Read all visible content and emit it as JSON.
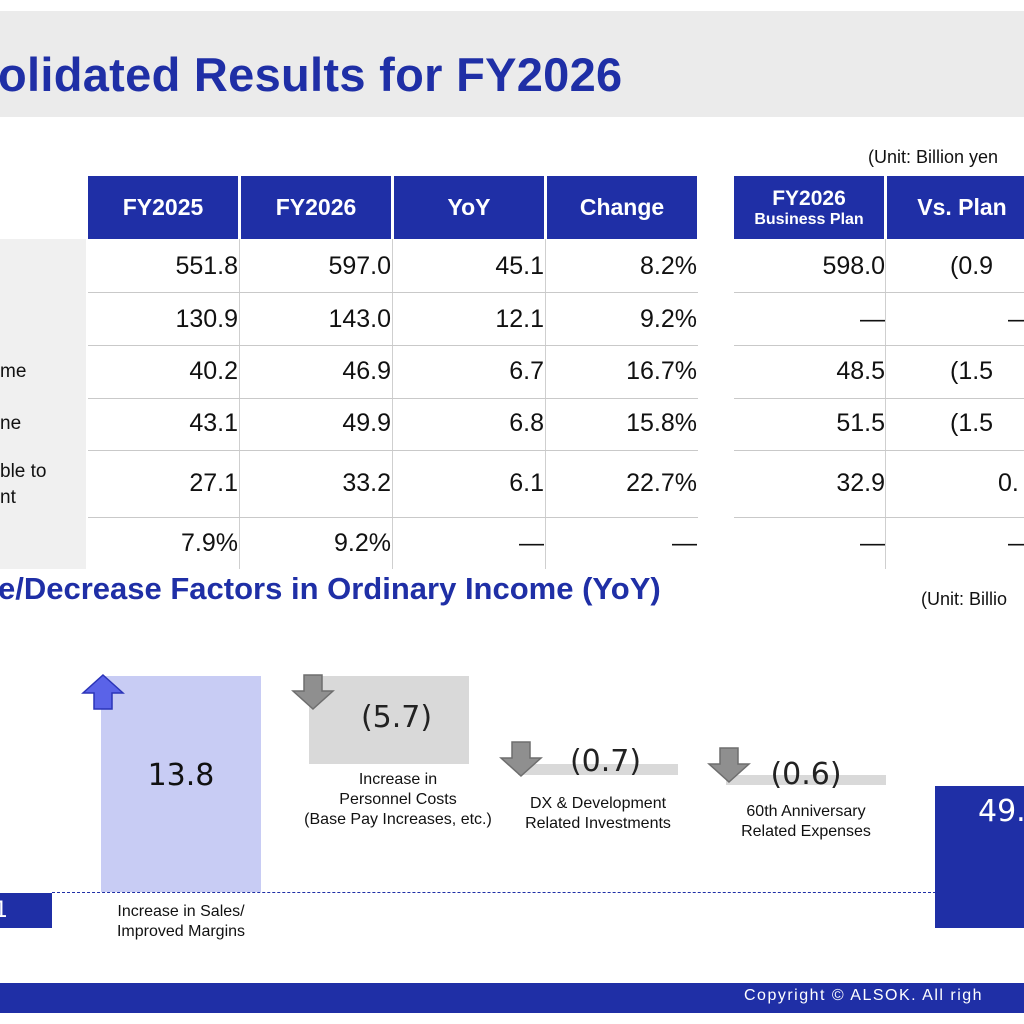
{
  "title": "olidated Results for FY2026",
  "table": {
    "unit": "(Unit: Billion yen",
    "headers": {
      "fy2025": "FY2025",
      "fy2026": "FY2026",
      "yoy": "YoY",
      "change": "Change",
      "plan_line1": "FY2026",
      "plan_line2": "Business Plan",
      "vs_plan": "Vs. Plan"
    },
    "rows": [
      {
        "label": "",
        "fy2025": "551.8",
        "fy2026": "597.0",
        "yoy": "45.1",
        "change": "8.2%",
        "plan": "598.0",
        "vs_plan": "(0.9"
      },
      {
        "label": "",
        "fy2025": "130.9",
        "fy2026": "143.0",
        "yoy": "12.1",
        "change": "9.2%",
        "plan": "—",
        "vs_plan": "—"
      },
      {
        "label": "me",
        "fy2025": "40.2",
        "fy2026": "46.9",
        "yoy": "6.7",
        "change": "16.7%",
        "plan": "48.5",
        "vs_plan": "(1.5"
      },
      {
        "label": "ne",
        "fy2025": "43.1",
        "fy2026": "49.9",
        "yoy": "6.8",
        "change": "15.8%",
        "plan": "51.5",
        "vs_plan": "(1.5"
      },
      {
        "label_line1": "ble to",
        "label_line2": "nt",
        "fy2025": "27.1",
        "fy2026": "33.2",
        "yoy": "6.1",
        "change": "22.7%",
        "plan": "32.9",
        "vs_plan": "0."
      },
      {
        "label": "",
        "fy2025": "7.9%",
        "fy2026": "9.2%",
        "yoy": "—",
        "change": "—",
        "plan": "—",
        "vs_plan": "—"
      }
    ]
  },
  "waterfall": {
    "title": "e/Decrease Factors in Ordinary Income (YoY)",
    "unit": "(Unit: Billio",
    "start_value": "1",
    "end_value": "49.",
    "factors": [
      {
        "value": "13.8",
        "label": "Increase in Sales/\nImproved Margins",
        "direction": "up"
      },
      {
        "value": "(5.7)",
        "label": "Increase in\nPersonnel Costs\n(Base Pay Increases, etc.)",
        "direction": "down"
      },
      {
        "value": "(0.7)",
        "label": "DX & Development\nRelated Investments",
        "direction": "down"
      },
      {
        "value": "(0.6)",
        "label": "60th Anniversary\nRelated Expenses",
        "direction": "down"
      }
    ],
    "colors": {
      "increase": "#c8ccf4",
      "decrease": "#d9d9d9",
      "total": "#1f2fa6",
      "up_arrow": "#5a63e8",
      "down_arrow": "#8f8f8f"
    }
  },
  "footer": {
    "copyright": "Copyright © ALSOK. All righ"
  },
  "colors": {
    "brand_blue": "#1f2fa6",
    "title_band": "#ebebeb",
    "label_band": "#f0f0f0"
  }
}
